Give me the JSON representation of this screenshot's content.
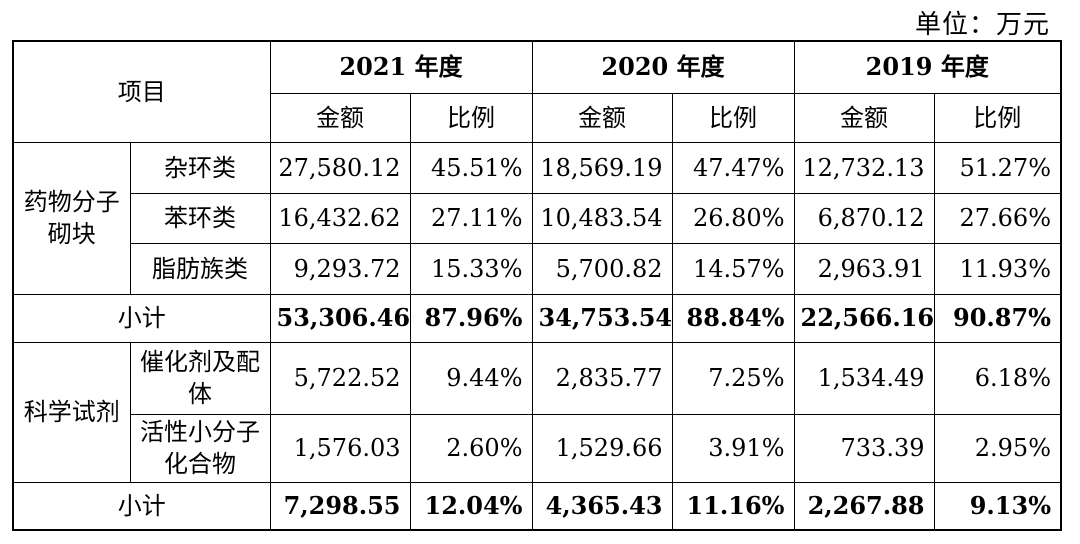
{
  "unit_label": "单位：万元",
  "header": {
    "item": "项目",
    "years": [
      "2021 年度",
      "2020 年度",
      "2019 年度"
    ],
    "amount": "金额",
    "ratio": "比例"
  },
  "groups": [
    {
      "category": "药物分子砌块",
      "rows": [
        {
          "name": "杂环类",
          "values": [
            "27,580.12",
            "45.51%",
            "18,569.19",
            "47.47%",
            "12,732.13",
            "51.27%"
          ]
        },
        {
          "name": "苯环类",
          "values": [
            "16,432.62",
            "27.11%",
            "10,483.54",
            "26.80%",
            "6,870.12",
            "27.66%"
          ]
        },
        {
          "name": "脂肪族类",
          "values": [
            "9,293.72",
            "15.33%",
            "5,700.82",
            "14.57%",
            "2,963.91",
            "11.93%"
          ]
        }
      ],
      "subtotal": {
        "label": "小计",
        "values": [
          "53,306.46",
          "87.96%",
          "34,753.54",
          "88.84%",
          "22,566.16",
          "90.87%"
        ]
      }
    },
    {
      "category": "科学试剂",
      "rows": [
        {
          "name": "催化剂及配体",
          "values": [
            "5,722.52",
            "9.44%",
            "2,835.77",
            "7.25%",
            "1,534.49",
            "6.18%"
          ]
        },
        {
          "name": "活性小分子化合物",
          "values": [
            "1,576.03",
            "2.60%",
            "1,529.66",
            "3.91%",
            "733.39",
            "2.95%"
          ]
        }
      ],
      "subtotal": {
        "label": "小计",
        "values": [
          "7,298.55",
          "12.04%",
          "4,365.43",
          "11.16%",
          "2,267.88",
          "9.13%"
        ]
      }
    }
  ]
}
